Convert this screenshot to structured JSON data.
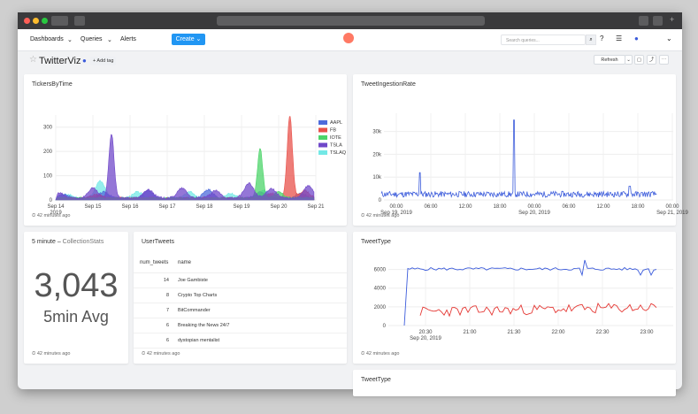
{
  "app": {
    "tab_url": ""
  },
  "nav": {
    "dashboards": "Dashboards",
    "queries": "Queries",
    "alerts": "Alerts",
    "create": "Create",
    "search_placeholder": "Search queries..."
  },
  "dashboard": {
    "title": "TwitterViz",
    "add_tag": "+ Add tag",
    "refresh": "Refresh"
  },
  "colors": {
    "accent": "#2196f3",
    "aapl": "#4e6bdb",
    "fb": "#e8514b",
    "iote": "#4cd469",
    "tsla": "#7048c9",
    "tslaq": "#73e8e6"
  },
  "panels": {
    "tickers": {
      "title": "TickersByTime",
      "footer": "42 minutes ago"
    },
    "ingestion": {
      "title": "TweetIngestionRate",
      "footer": "42 minutes ago"
    },
    "stats": {
      "title": "5 minute",
      "sep": "–",
      "subtitle": "CollectionStats",
      "value": "3,043",
      "label": "5min Avg",
      "footer": "42 minutes ago"
    },
    "usertweets": {
      "title": "UserTweets",
      "col1": "num_tweets",
      "col2": "name",
      "footer": "42 minutes ago",
      "rows": [
        {
          "n": "14",
          "name": "Joe Gambiste"
        },
        {
          "n": "8",
          "name": "Crypto Top Charts"
        },
        {
          "n": "7",
          "name": "BitCommander"
        },
        {
          "n": "6",
          "name": "Breaking the News 24/7"
        },
        {
          "n": "6",
          "name": "dystopian mentalist"
        }
      ]
    },
    "tweettype": {
      "title": "TweetType",
      "footer": "42 minutes ago"
    },
    "tweettype2": {
      "title": "TweetType"
    }
  },
  "chart_data": [
    {
      "type": "area",
      "title": "TickersByTime",
      "x": [
        "Sep 14 2019",
        "Sep 15",
        "Sep 16",
        "Sep 17",
        "Sep 18",
        "Sep 19",
        "Sep 20",
        "Sep 21"
      ],
      "xticks": [
        "Sep 14",
        "Sep 15",
        "Sep 16",
        "Sep 17",
        "Sep 18",
        "Sep 19",
        "Sep 20",
        "Sep 21"
      ],
      "xticks_sub": [
        "2019",
        "",
        "",
        "",
        "",
        "",
        "",
        ""
      ],
      "yticks": [
        "0",
        "100",
        "200",
        "300"
      ],
      "ylim": [
        0,
        350
      ],
      "legend": "right",
      "series": [
        {
          "name": "AAPL",
          "peaks": [
            [
              14.2,
              15
            ],
            [
              15.3,
              25
            ],
            [
              16.5,
              30
            ],
            [
              18.1,
              35
            ],
            [
              19.5,
              25
            ],
            [
              20.6,
              20
            ]
          ]
        },
        {
          "name": "FB",
          "peaks": [
            [
              15.1,
              15
            ],
            [
              19.8,
              20
            ],
            [
              20.3,
              340
            ],
            [
              20.7,
              30
            ]
          ]
        },
        {
          "name": "IOTE",
          "peaks": [
            [
              19.5,
              205
            ],
            [
              20.0,
              25
            ]
          ]
        },
        {
          "name": "TSLA",
          "peaks": [
            [
              14.1,
              20
            ],
            [
              15.0,
              40
            ],
            [
              15.5,
              265
            ],
            [
              16.5,
              35
            ],
            [
              17.4,
              40
            ],
            [
              18.3,
              30
            ],
            [
              19.2,
              60
            ],
            [
              19.8,
              40
            ],
            [
              20.8,
              50
            ]
          ]
        },
        {
          "name": "TSLAQ",
          "peaks": [
            [
              14.3,
              15
            ],
            [
              15.2,
              70
            ],
            [
              16.2,
              25
            ],
            [
              17.6,
              25
            ],
            [
              18.7,
              20
            ],
            [
              19.6,
              30
            ]
          ]
        }
      ]
    },
    {
      "type": "line",
      "title": "TweetIngestionRate",
      "xticks": [
        "00:00",
        "06:00",
        "12:00",
        "18:00",
        "00:00",
        "06:00",
        "12:00",
        "18:00",
        "00:00"
      ],
      "xticks_sub": [
        "Sep 19, 2019",
        "",
        "",
        "",
        "Sep 20, 2019",
        "",
        "",
        "",
        "Sep 21, 2019"
      ],
      "yticks": [
        "0",
        "10k",
        "20k",
        "30k"
      ],
      "ylim": [
        0,
        38000
      ],
      "series": [
        {
          "name": "",
          "baseline": 2500,
          "spikes": [
            [
              0.14,
              12000
            ],
            [
              0.48,
              35000
            ],
            [
              0.9,
              6000
            ]
          ]
        }
      ]
    },
    {
      "type": "line",
      "title": "TweetType",
      "xticks": [
        "20:30",
        "21:00",
        "21:30",
        "22:00",
        "22:30",
        "23:00"
      ],
      "xticks_sub": [
        "Sep 20, 2019",
        "",
        "",
        "",
        "",
        ""
      ],
      "yticks": [
        "0",
        "2000",
        "4000",
        "6000"
      ],
      "ylim": [
        0,
        7000
      ],
      "series": [
        {
          "name": "",
          "color": "blue",
          "level": 6100
        },
        {
          "name": "",
          "color": "red",
          "level": 1300
        }
      ]
    }
  ]
}
